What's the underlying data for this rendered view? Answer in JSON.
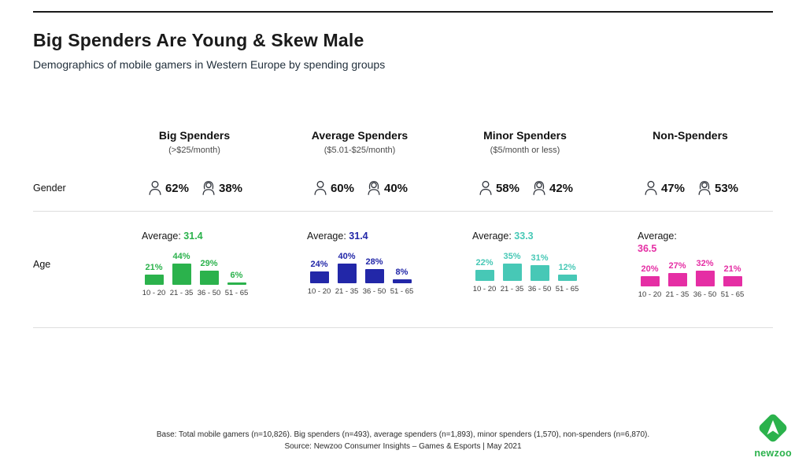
{
  "page": {
    "title": "Big Spenders Are Young & Skew Male",
    "subtitle": "Demographics of mobile gamers in Western Europe by spending groups"
  },
  "rows": {
    "gender_label": "Gender",
    "age_label": "Age"
  },
  "age_categories": [
    "10 - 20",
    "21 - 35",
    "36 - 50",
    "51 - 65"
  ],
  "icons": {
    "male": "male-user-icon",
    "female": "female-user-icon"
  },
  "groups": [
    {
      "name": "Big Spenders",
      "range": "(>$25/month)",
      "color": "#2bb24c",
      "male_label": "62%",
      "female_label": "38%",
      "average_label": "Average:",
      "average_value": "31.4",
      "bar_labels": [
        "21%",
        "44%",
        "29%",
        "6%"
      ]
    },
    {
      "name": "Average Spenders",
      "range": "($5.01-$25/month)",
      "color": "#2227a8",
      "male_label": "60%",
      "female_label": "40%",
      "average_label": "Average:",
      "average_value": "31.4",
      "bar_labels": [
        "24%",
        "40%",
        "28%",
        "8%"
      ]
    },
    {
      "name": "Minor Spenders",
      "range": "($5/month or less)",
      "color": "#47c8b6",
      "male_label": "58%",
      "female_label": "42%",
      "average_label": "Average:",
      "average_value": "33.3",
      "bar_labels": [
        "22%",
        "35%",
        "31%",
        "12%"
      ]
    },
    {
      "name": "Non-Spenders",
      "range": "",
      "color": "#e52ea4",
      "male_label": "47%",
      "female_label": "53%",
      "average_label": "Average:",
      "average_value": "36.5",
      "bar_labels": [
        "20%",
        "27%",
        "32%",
        "21%"
      ]
    }
  ],
  "footer": {
    "base": "Base: Total mobile gamers (n=10,826). Big spenders (n=493), average spenders (n=1,893), minor spenders (1,570), non-spenders (n=6,870).",
    "source": "Source: Newzoo Consumer Insights – Games & Esports | May 2021"
  },
  "logo": {
    "brand": "newzoo"
  },
  "chart_data": {
    "type": "bar",
    "title": "Big Spenders Are Young & Skew Male",
    "subtitle": "Demographics of mobile gamers in Western Europe by spending groups",
    "categories": [
      "10 - 20",
      "21 - 35",
      "36 - 50",
      "51 - 65"
    ],
    "value_suffix": "%",
    "ylim": [
      0,
      50
    ],
    "grid": false,
    "legend_position": "none",
    "series": [
      {
        "name": "Big Spenders",
        "range": ">$25/month",
        "color": "#2bb24c",
        "male_pct": 62,
        "female_pct": 38,
        "average_age": 31.4,
        "values": [
          21,
          44,
          29,
          6
        ]
      },
      {
        "name": "Average Spenders",
        "range": "$5.01-$25/month",
        "color": "#2227a8",
        "male_pct": 60,
        "female_pct": 40,
        "average_age": 31.4,
        "values": [
          24,
          40,
          28,
          8
        ]
      },
      {
        "name": "Minor Spenders",
        "range": "$5/month or less",
        "color": "#47c8b6",
        "male_pct": 58,
        "female_pct": 42,
        "average_age": 33.3,
        "values": [
          22,
          35,
          31,
          12
        ]
      },
      {
        "name": "Non-Spenders",
        "range": "",
        "color": "#e52ea4",
        "male_pct": 47,
        "female_pct": 53,
        "average_age": 36.5,
        "values": [
          20,
          27,
          32,
          21
        ]
      }
    ]
  }
}
